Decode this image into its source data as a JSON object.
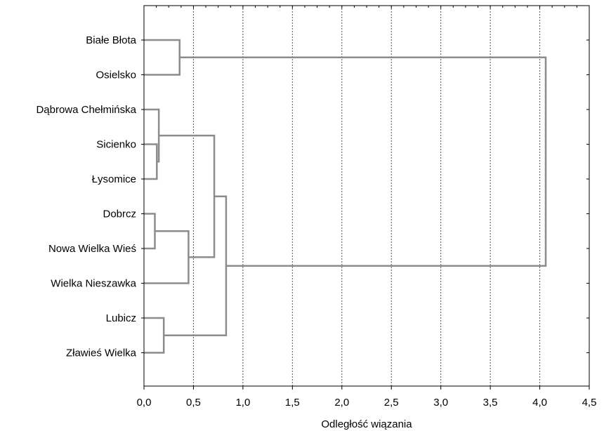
{
  "chart_data": {
    "type": "dendrogram",
    "xlabel": "Odległość wiązania",
    "xlim": [
      0.0,
      4.5
    ],
    "xticks": [
      0.0,
      0.5,
      1.0,
      1.5,
      2.0,
      2.5,
      3.0,
      3.5,
      4.0,
      4.5
    ],
    "xtick_labels": [
      "0,0",
      "0,5",
      "1,0",
      "1,5",
      "2,0",
      "2,5",
      "3,0",
      "3,5",
      "4,0",
      "4,5"
    ],
    "grid": "vertical-dotted",
    "leaves": [
      "Białe Błota",
      "Osielsko",
      "Dąbrowa Chełmińska",
      "Sicienko",
      "Łysomice",
      "Dobrcz",
      "Nowa Wielka Wieś",
      "Wielka Nieszawka",
      "Lubicz",
      "Zławieś Wielka"
    ],
    "merges": [
      {
        "id": "A",
        "left": "Sicienko",
        "right": "Łysomice",
        "distance": 0.13
      },
      {
        "id": "B",
        "left": "Dąbrowa Chełmińska",
        "right": "A",
        "distance": 0.15
      },
      {
        "id": "C",
        "left": "Dobrcz",
        "right": "Nowa Wielka Wieś",
        "distance": 0.11
      },
      {
        "id": "D",
        "left": "C",
        "right": "Wielka Nieszawka",
        "distance": 0.45
      },
      {
        "id": "E",
        "left": "B",
        "right": "D",
        "distance": 0.71
      },
      {
        "id": "F",
        "left": "Lubicz",
        "right": "Zławieś Wielka",
        "distance": 0.2
      },
      {
        "id": "G",
        "left": "E",
        "right": "F",
        "distance": 0.83
      },
      {
        "id": "H",
        "left": "Białe Błota",
        "right": "Osielsko",
        "distance": 0.36
      },
      {
        "id": "I",
        "left": "H",
        "right": "G",
        "distance": 4.06
      }
    ]
  }
}
